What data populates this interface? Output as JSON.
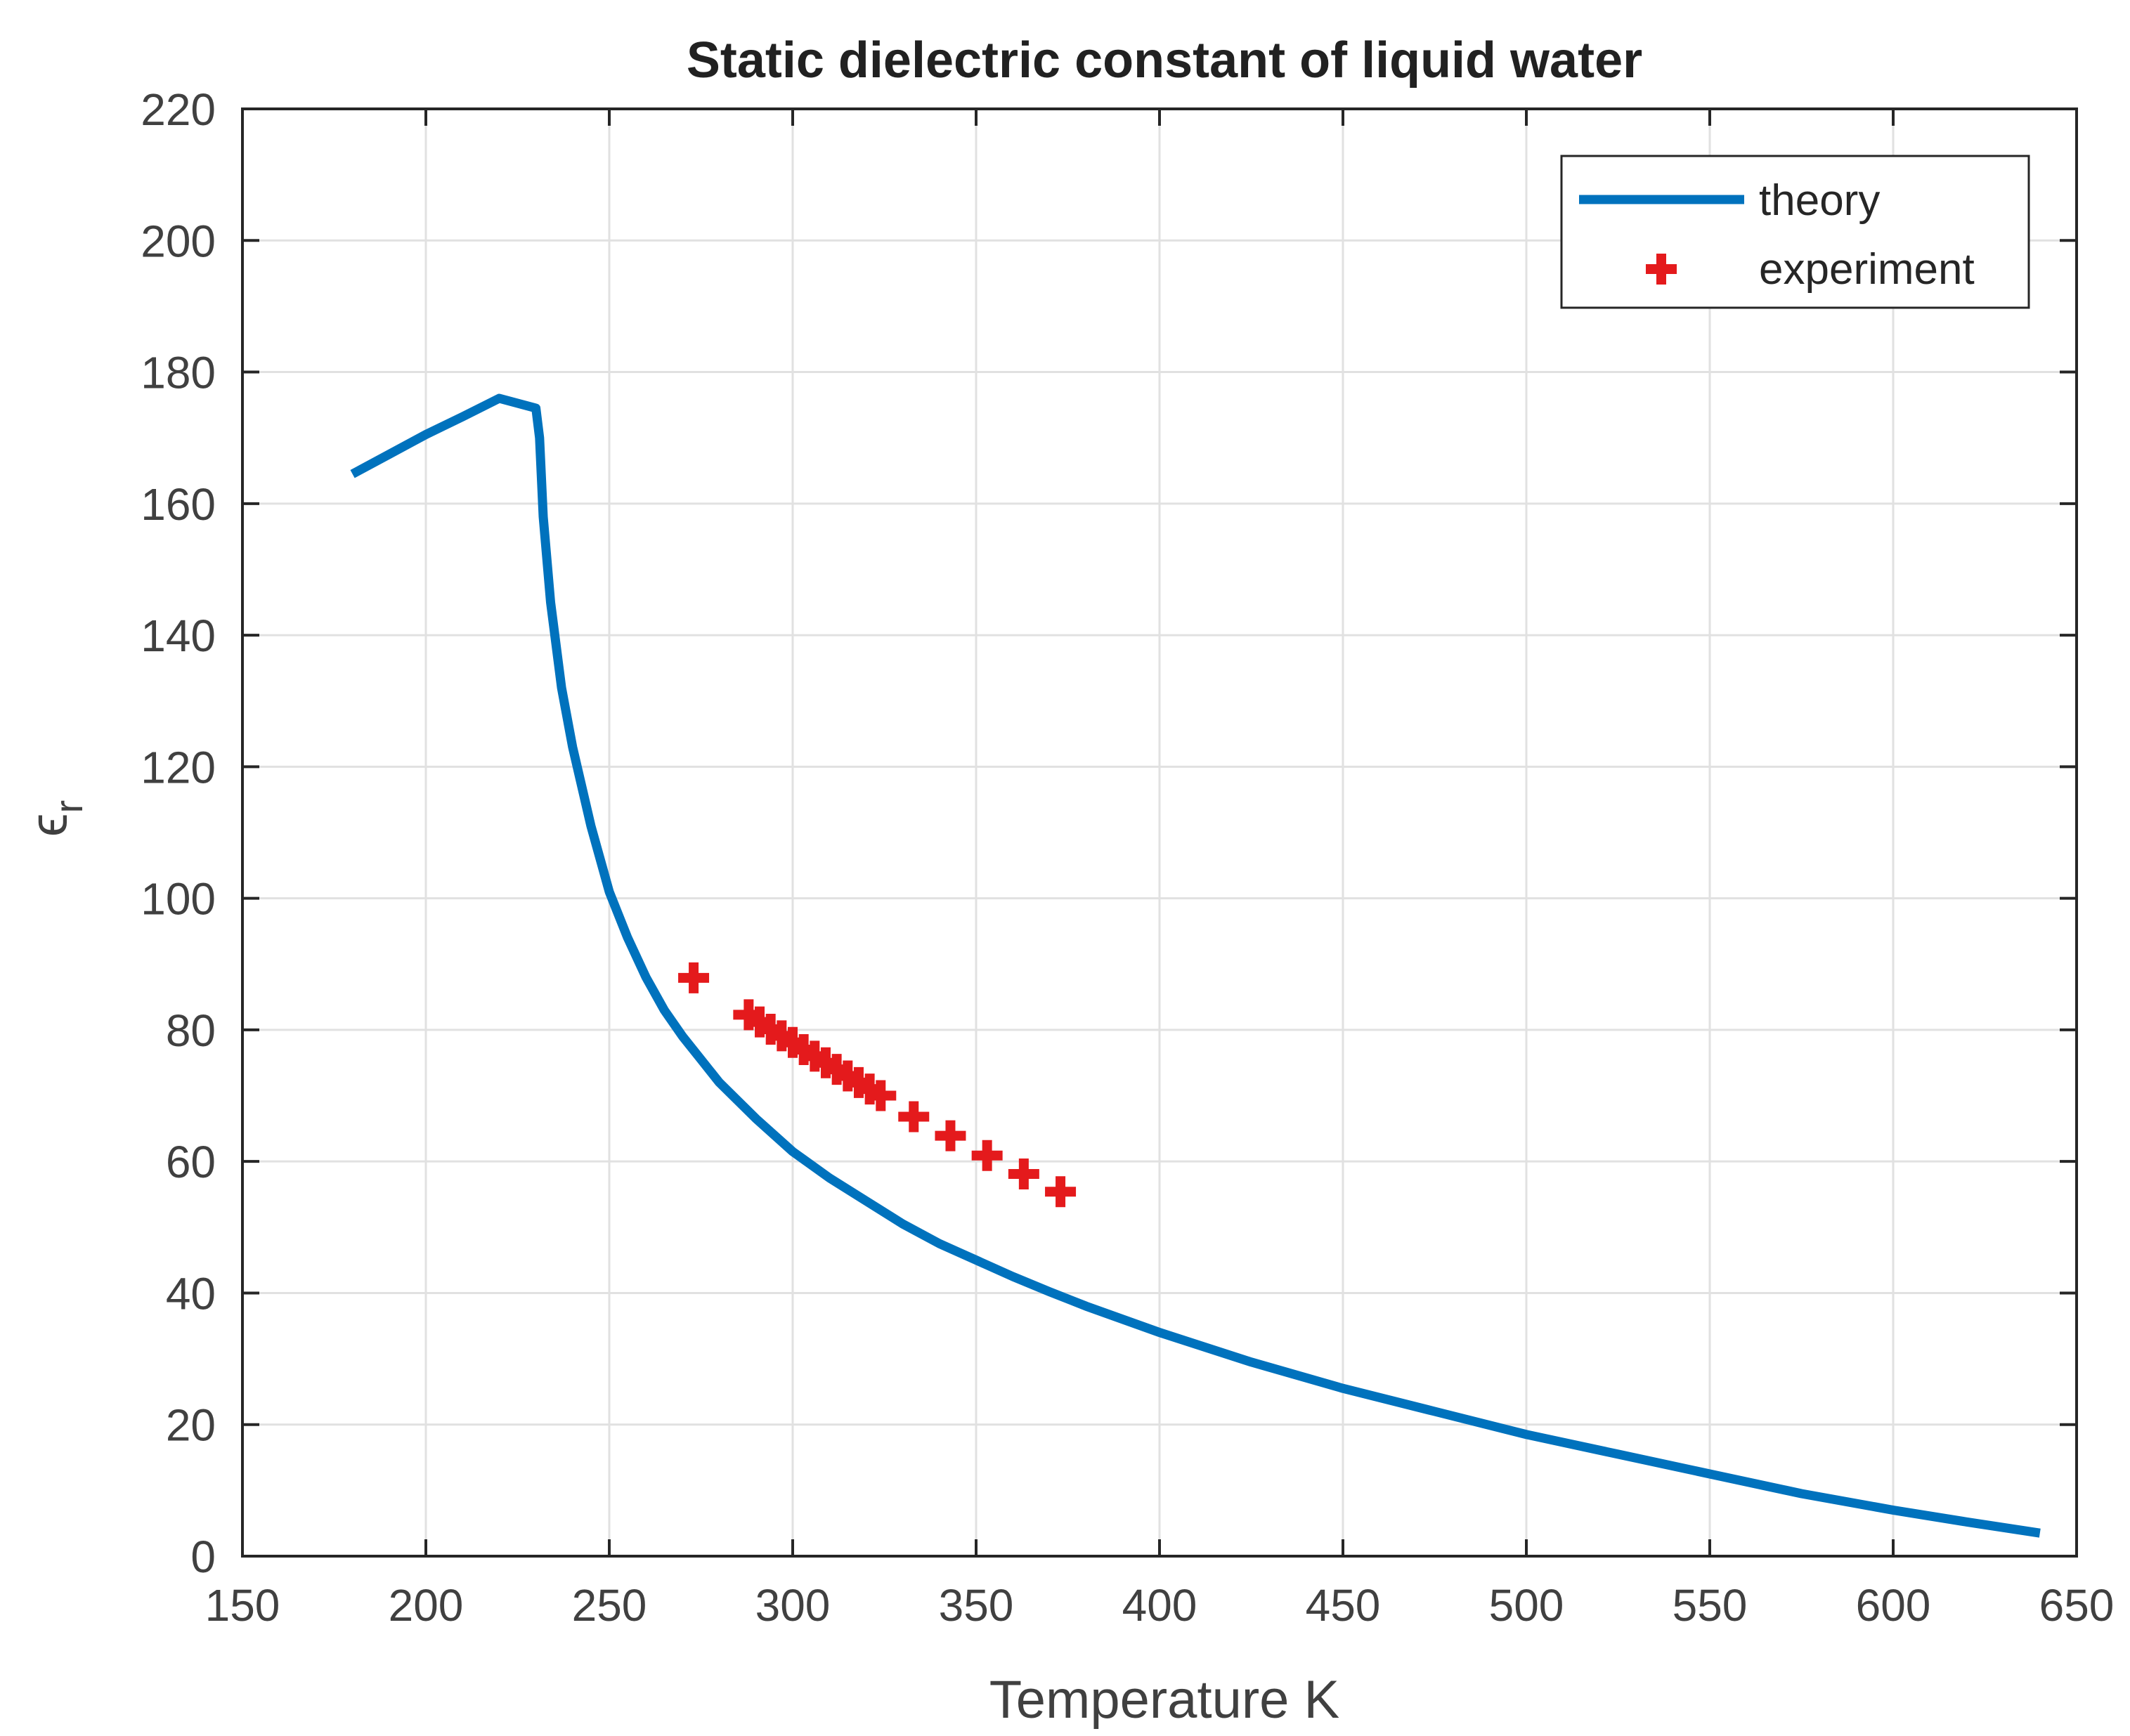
{
  "chart_data": {
    "type": "line",
    "title": "Static dielectric constant of liquid water",
    "xlabel": "Temperature K",
    "ylabel_main": "ϵ",
    "ylabel_sub": "r",
    "xlim": [
      150,
      650
    ],
    "ylim": [
      0,
      220
    ],
    "xticks": [
      150,
      200,
      250,
      300,
      350,
      400,
      450,
      500,
      550,
      600,
      650
    ],
    "yticks": [
      0,
      20,
      40,
      60,
      80,
      100,
      120,
      140,
      160,
      180,
      200,
      220
    ],
    "grid": true,
    "legend_position": "top-right",
    "series": [
      {
        "name": "theory",
        "kind": "line",
        "color": "#0072bd",
        "x": [
          180,
          190,
          200,
          210,
          220,
          230,
          231,
          232,
          234,
          237,
          240,
          245,
          250,
          255,
          260,
          265,
          270,
          275,
          280,
          290,
          300,
          310,
          320,
          330,
          340,
          350,
          360,
          370,
          380,
          400,
          425,
          450,
          475,
          500,
          525,
          550,
          575,
          600,
          620,
          640
        ],
        "y": [
          164.5,
          167.5,
          170.5,
          173.2,
          176.0,
          174.5,
          170.0,
          158.0,
          145.0,
          132.0,
          123.0,
          111.0,
          101.0,
          94.0,
          88.0,
          83.0,
          79.0,
          75.5,
          72.0,
          66.5,
          61.5,
          57.5,
          54.0,
          50.5,
          47.5,
          45.0,
          42.5,
          40.2,
          38.0,
          34.0,
          29.5,
          25.5,
          22.0,
          18.5,
          15.5,
          12.5,
          9.5,
          7.0,
          5.2,
          3.5
        ]
      },
      {
        "name": "experiment",
        "kind": "scatter",
        "color": "#e41a1c",
        "x": [
          273,
          288,
          291,
          294,
          297,
          300,
          303,
          306,
          309,
          312,
          315,
          318,
          321,
          324,
          333,
          343,
          353,
          363,
          373
        ],
        "y": [
          87.9,
          82.3,
          81.2,
          80.1,
          79.1,
          78.1,
          77.0,
          76.0,
          75.0,
          74.0,
          73.0,
          72.0,
          71.0,
          70.0,
          66.8,
          63.9,
          60.9,
          58.1,
          55.4
        ]
      }
    ]
  }
}
